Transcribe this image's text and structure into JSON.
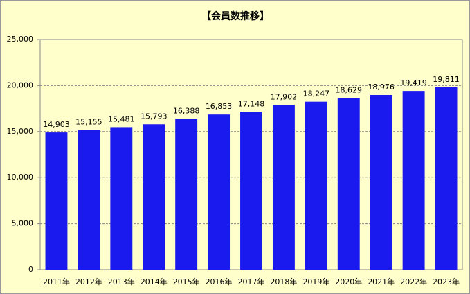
{
  "chart_data": {
    "type": "bar",
    "title": "【会員数推移】",
    "categories": [
      "2011年",
      "2012年",
      "2013年",
      "2014年",
      "2015年",
      "2016年",
      "2017年",
      "2018年",
      "2019年",
      "2020年",
      "2021年",
      "2022年",
      "2023年"
    ],
    "values": [
      14903,
      15155,
      15481,
      15793,
      16388,
      16853,
      17148,
      17902,
      18247,
      18629,
      18976,
      19419,
      19811
    ],
    "value_labels": [
      "14,903",
      "15,155",
      "15,481",
      "15,793",
      "16,388",
      "16,853",
      "17,148",
      "17,902",
      "18,247",
      "18,629",
      "18,976",
      "19,419",
      "19,811"
    ],
    "color": "#1a1aee",
    "ylim": [
      0,
      25000
    ],
    "yticks": [
      0,
      {
        "value": 5000,
        "label": "5,000"
      },
      {
        "value": 10000,
        "label": "10,000"
      },
      {
        "value": 15000,
        "label": "15,000"
      },
      {
        "value": 20000,
        "label": "20,000"
      },
      {
        "value": 25000,
        "label": "25,000"
      }
    ],
    "grid": true
  }
}
